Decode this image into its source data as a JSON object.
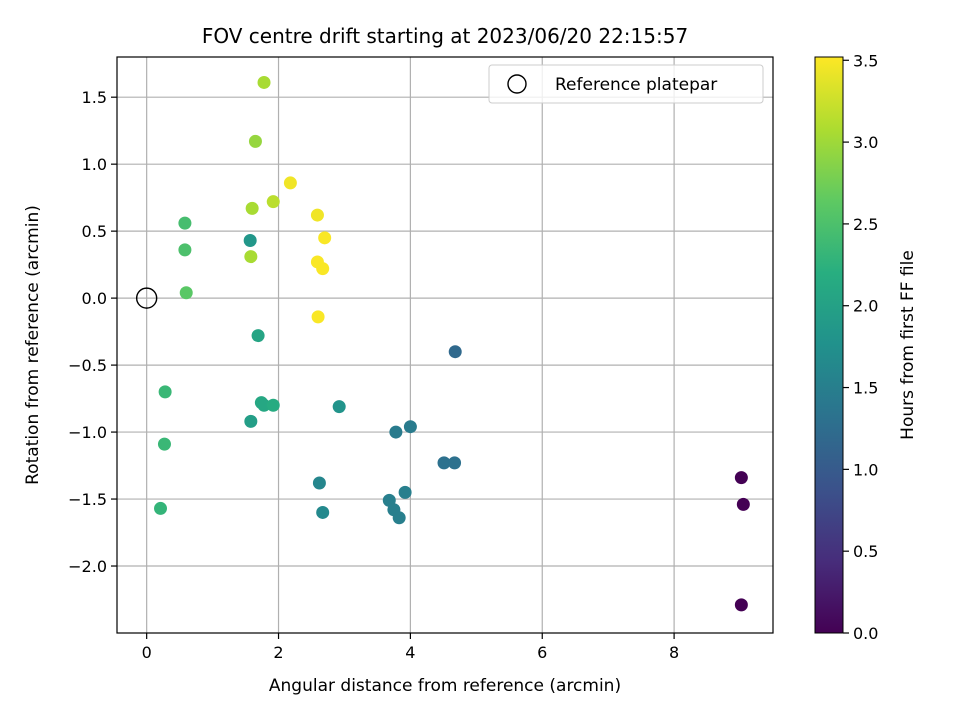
{
  "chart_data": {
    "type": "scatter",
    "title": "FOV centre drift starting at 2023/06/20 22:15:57",
    "xlabel": "Angular distance from reference (arcmin)",
    "ylabel": "Rotation from reference (arcmin)",
    "xlim": [
      -0.45,
      9.5
    ],
    "ylim": [
      -2.5,
      1.8
    ],
    "xticks": [
      0,
      2,
      4,
      6,
      8
    ],
    "xtick_labels": [
      "0",
      "2",
      "4",
      "6",
      "8"
    ],
    "yticks": [
      1.5,
      1.0,
      0.5,
      0.0,
      -0.5,
      -1.0,
      -1.5,
      -2.0
    ],
    "ytick_labels": [
      "1.5",
      "1.0",
      "0.5",
      "0.0",
      "−0.5",
      "−1.0",
      "−1.5",
      "−2.0"
    ],
    "grid": true,
    "legend": {
      "position": "top-right",
      "entries": [
        "Reference platepar"
      ]
    },
    "reference_point": {
      "x": 0.0,
      "y": 0.0,
      "label": "Reference platepar"
    },
    "colorbar": {
      "label": "Hours from first FF file",
      "range": [
        0.0,
        3.52
      ],
      "ticks": [
        0.0,
        0.5,
        1.0,
        1.5,
        2.0,
        2.5,
        3.0,
        3.5
      ],
      "tick_labels": [
        "0.0",
        "0.5",
        "1.0",
        "1.5",
        "2.0",
        "2.5",
        "3.0",
        "3.5"
      ],
      "colormap": "viridis"
    },
    "points": [
      {
        "x": 9.02,
        "y": -1.34,
        "hours": 0.0
      },
      {
        "x": 9.05,
        "y": -1.54,
        "hours": 0.0
      },
      {
        "x": 9.02,
        "y": -2.29,
        "hours": 0.0
      },
      {
        "x": 4.68,
        "y": -0.4,
        "hours": 1.2
      },
      {
        "x": 4.51,
        "y": -1.23,
        "hours": 1.3
      },
      {
        "x": 4.67,
        "y": -1.23,
        "hours": 1.3
      },
      {
        "x": 4.0,
        "y": -0.96,
        "hours": 1.45
      },
      {
        "x": 3.78,
        "y": -1.0,
        "hours": 1.45
      },
      {
        "x": 3.92,
        "y": -1.45,
        "hours": 1.5
      },
      {
        "x": 3.68,
        "y": -1.51,
        "hours": 1.5
      },
      {
        "x": 3.75,
        "y": -1.58,
        "hours": 1.5
      },
      {
        "x": 3.83,
        "y": -1.64,
        "hours": 1.5
      },
      {
        "x": 2.62,
        "y": -1.38,
        "hours": 1.6
      },
      {
        "x": 2.67,
        "y": -1.6,
        "hours": 1.65
      },
      {
        "x": 2.92,
        "y": -0.81,
        "hours": 1.8
      },
      {
        "x": 1.57,
        "y": 0.43,
        "hours": 1.85
      },
      {
        "x": 1.58,
        "y": -0.92,
        "hours": 1.95
      },
      {
        "x": 1.69,
        "y": -0.28,
        "hours": 2.05
      },
      {
        "x": 1.74,
        "y": -0.78,
        "hours": 2.1
      },
      {
        "x": 1.78,
        "y": -0.8,
        "hours": 2.1
      },
      {
        "x": 1.92,
        "y": -0.8,
        "hours": 2.15
      },
      {
        "x": 0.21,
        "y": -1.57,
        "hours": 2.3
      },
      {
        "x": 0.27,
        "y": -1.09,
        "hours": 2.35
      },
      {
        "x": 0.28,
        "y": -0.7,
        "hours": 2.35
      },
      {
        "x": 0.58,
        "y": 0.56,
        "hours": 2.45
      },
      {
        "x": 0.58,
        "y": 0.36,
        "hours": 2.5
      },
      {
        "x": 0.6,
        "y": 0.04,
        "hours": 2.6
      },
      {
        "x": 1.65,
        "y": 1.17,
        "hours": 2.95
      },
      {
        "x": 1.6,
        "y": 0.67,
        "hours": 3.05
      },
      {
        "x": 1.58,
        "y": 0.31,
        "hours": 3.05
      },
      {
        "x": 1.78,
        "y": 1.61,
        "hours": 3.05
      },
      {
        "x": 1.92,
        "y": 0.72,
        "hours": 3.15
      },
      {
        "x": 2.18,
        "y": 0.86,
        "hours": 3.45
      },
      {
        "x": 2.59,
        "y": 0.62,
        "hours": 3.45
      },
      {
        "x": 2.7,
        "y": 0.45,
        "hours": 3.5
      },
      {
        "x": 2.59,
        "y": 0.27,
        "hours": 3.5
      },
      {
        "x": 2.67,
        "y": 0.22,
        "hours": 3.5
      },
      {
        "x": 2.6,
        "y": -0.14,
        "hours": 3.5
      }
    ]
  }
}
